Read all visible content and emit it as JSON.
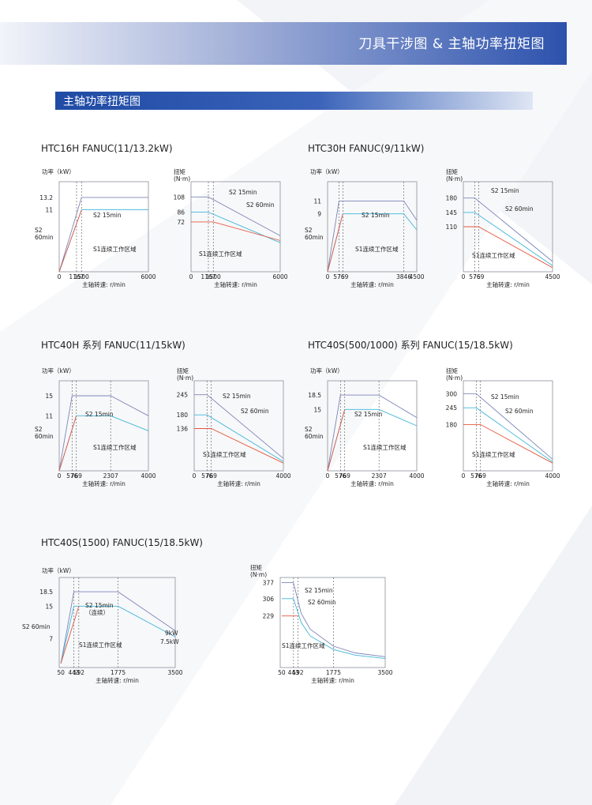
{
  "header": {
    "title": "刀具干涉图 & 主轴功率扭矩图"
  },
  "section": {
    "title": "主轴功率扭矩图"
  },
  "colors": {
    "accent": "#2c52ad",
    "s2_15min": "#7d85b8",
    "s2_60min": "#3fb6d9",
    "s1": "#e5573f",
    "axis": "#8a8f9c"
  },
  "models": [
    {
      "title": "HTC16H FANUC(11/13.2kW)"
    },
    {
      "title": "HTC30H FANUC(9/11kW)"
    },
    {
      "title": "HTC40H 系列 FANUC(11/15kW)"
    },
    {
      "title": "HTC40S(500/1000) 系列 FANUC(15/18.5kW)"
    },
    {
      "title": "HTC40S(1500) FANUC(15/18.5kW)"
    }
  ],
  "chart_data": [
    {
      "model": "HTC16H FANUC(11/13.2kW)",
      "type": "line",
      "ylabel": "功率（kW）",
      "xlabel": "主轴转速: r/min",
      "xlim": [
        0,
        6000
      ],
      "ylim": [
        0,
        16
      ],
      "xticks": [
        "0",
        "1167",
        "1500",
        "6000"
      ],
      "yticks": [
        "13.2",
        "11"
      ],
      "annotations": [
        "S2 15min",
        "S2\n60min",
        "S1连续工作区域"
      ],
      "series": [
        {
          "name": "S2 15min",
          "x": [
            0,
            1500,
            6000
          ],
          "y": [
            0,
            13.2,
            13.2
          ]
        },
        {
          "name": "S2 60min",
          "x": [
            0,
            1500,
            6000
          ],
          "y": [
            0,
            11,
            11
          ]
        },
        {
          "name": "S1",
          "x": [
            0,
            1500
          ],
          "y": [
            0,
            11
          ]
        }
      ]
    },
    {
      "model": "HTC16H FANUC(11/13.2kW)",
      "type": "line",
      "ylabel": "扭矩\n(N·m)",
      "xlabel": "主轴转速: r/min",
      "xlim": [
        0,
        6000
      ],
      "ylim": [
        0,
        130
      ],
      "xticks": [
        "0",
        "1167",
        "1500",
        "6000"
      ],
      "yticks": [
        "108",
        "86",
        "72"
      ],
      "annotations": [
        "S2 15min",
        "S2 60min",
        "S1连续工作区域"
      ],
      "series": [
        {
          "name": "S2 15min",
          "x": [
            0,
            1167,
            6000
          ],
          "y": [
            108,
            108,
            52
          ]
        },
        {
          "name": "S2 60min",
          "x": [
            0,
            1167,
            6000
          ],
          "y": [
            86,
            86,
            42
          ]
        },
        {
          "name": "S1",
          "x": [
            0,
            1500,
            6000
          ],
          "y": [
            72,
            72,
            45
          ]
        }
      ]
    },
    {
      "model": "HTC30H FANUC(9/11kW)",
      "type": "line",
      "ylabel": "功率（kW）",
      "xlabel": "主轴转速: r/min",
      "xlim": [
        0,
        4500
      ],
      "ylim": [
        0,
        14
      ],
      "xticks": [
        "0",
        "576",
        "769",
        "3846",
        "4500"
      ],
      "yticks": [
        "11",
        "9"
      ],
      "annotations": [
        "S2 15min",
        "S2\n60min",
        "S1连续工作区域"
      ],
      "series": [
        {
          "name": "S2 15min",
          "x": [
            0,
            576,
            3846,
            4500
          ],
          "y": [
            0,
            11,
            11,
            8
          ]
        },
        {
          "name": "S2 60min",
          "x": [
            0,
            769,
            3846,
            4500
          ],
          "y": [
            0,
            9,
            9,
            6.5
          ]
        },
        {
          "name": "S1",
          "x": [
            0,
            769
          ],
          "y": [
            0,
            9
          ]
        }
      ]
    },
    {
      "model": "HTC30H FANUC(9/11kW)",
      "type": "line",
      "ylabel": "扭矩\n(N·m)",
      "xlabel": "主轴转速: r/min",
      "xlim": [
        0,
        4500
      ],
      "ylim": [
        0,
        220
      ],
      "xticks": [
        "0",
        "576",
        "769",
        "4500"
      ],
      "yticks": [
        "180",
        "145",
        "110"
      ],
      "annotations": [
        "S2 15min",
        "S2 60min",
        "S1连续工作区域"
      ],
      "series": [
        {
          "name": "S2 15min",
          "x": [
            0,
            576,
            4500
          ],
          "y": [
            180,
            180,
            25
          ]
        },
        {
          "name": "S2 60min",
          "x": [
            0,
            576,
            4500
          ],
          "y": [
            145,
            145,
            15
          ]
        },
        {
          "name": "S1",
          "x": [
            0,
            769,
            4500
          ],
          "y": [
            110,
            110,
            10
          ]
        }
      ]
    },
    {
      "model": "HTC40H 系列 FANUC(11/15kW)",
      "type": "line",
      "ylabel": "功率（kW）",
      "xlabel": "主轴转速: r/min",
      "xlim": [
        0,
        4000
      ],
      "ylim": [
        0,
        18
      ],
      "xticks": [
        "0",
        "576",
        "769",
        "2307",
        "4000"
      ],
      "yticks": [
        "15",
        "11"
      ],
      "annotations": [
        "S2 15min",
        "S2\n60min",
        "S1连续工作区域"
      ],
      "series": [
        {
          "name": "S2 15min",
          "x": [
            0,
            576,
            2307,
            4000
          ],
          "y": [
            0,
            15,
            15,
            11
          ]
        },
        {
          "name": "S2 60min",
          "x": [
            0,
            769,
            2307,
            4000
          ],
          "y": [
            0,
            11,
            11,
            8
          ]
        },
        {
          "name": "S1",
          "x": [
            0,
            769
          ],
          "y": [
            0,
            11
          ]
        }
      ]
    },
    {
      "model": "HTC40H 系列 FANUC(11/15kW)",
      "type": "line",
      "ylabel": "扭矩\n(N·m)",
      "xlabel": "主轴转速: r/min",
      "xlim": [
        0,
        4000
      ],
      "ylim": [
        0,
        290
      ],
      "xticks": [
        "0",
        "576",
        "769",
        "4000"
      ],
      "yticks": [
        "245",
        "180",
        "136"
      ],
      "annotations": [
        "S2 15min",
        "S2 60min",
        "S1连续工作区域"
      ],
      "series": [
        {
          "name": "S2 15min",
          "x": [
            0,
            576,
            4000
          ],
          "y": [
            245,
            245,
            40
          ]
        },
        {
          "name": "S2 60min",
          "x": [
            0,
            576,
            4000
          ],
          "y": [
            180,
            180,
            30
          ]
        },
        {
          "name": "S1",
          "x": [
            0,
            769,
            4000
          ],
          "y": [
            136,
            136,
            25
          ]
        }
      ]
    },
    {
      "model": "HTC40S(500/1000) 系列 FANUC(15/18.5kW)",
      "type": "line",
      "ylabel": "功率（kW）",
      "xlabel": "主轴转速: r/min",
      "xlim": [
        0,
        4000
      ],
      "ylim": [
        0,
        22
      ],
      "xticks": [
        "0",
        "576",
        "769",
        "2307",
        "4000"
      ],
      "yticks": [
        "18.5",
        "15"
      ],
      "annotations": [
        "S2 15min",
        "S2\n60min",
        "S1连续工作区域"
      ],
      "series": [
        {
          "name": "S2 15min",
          "x": [
            0,
            576,
            2307,
            4000
          ],
          "y": [
            0,
            18.5,
            18.5,
            13
          ]
        },
        {
          "name": "S2 60min",
          "x": [
            0,
            769,
            2307,
            4000
          ],
          "y": [
            0,
            15,
            15,
            11
          ]
        },
        {
          "name": "S1",
          "x": [
            0,
            769
          ],
          "y": [
            0,
            15
          ]
        }
      ]
    },
    {
      "model": "HTC40S(500/1000) 系列 FANUC(15/18.5kW)",
      "type": "line",
      "ylabel": "扭矩\n(N·m)",
      "xlabel": "主轴转速: r/min",
      "xlim": [
        0,
        4000
      ],
      "ylim": [
        0,
        350
      ],
      "xticks": [
        "0",
        "576",
        "769",
        "4000"
      ],
      "yticks": [
        "300",
        "245",
        "180"
      ],
      "annotations": [
        "S2 15min",
        "S2 60min",
        "S1连续工作区域"
      ],
      "series": [
        {
          "name": "S2 15min",
          "x": [
            0,
            576,
            4000
          ],
          "y": [
            300,
            300,
            45
          ]
        },
        {
          "name": "S2 60min",
          "x": [
            0,
            576,
            4000
          ],
          "y": [
            245,
            245,
            35
          ]
        },
        {
          "name": "S1",
          "x": [
            0,
            769,
            4000
          ],
          "y": [
            180,
            180,
            30
          ]
        }
      ]
    },
    {
      "model": "HTC40S(1500) FANUC(15/18.5kW)",
      "type": "line",
      "ylabel": "功率（kW）",
      "xlabel": "主轴转速: r/min",
      "xlim": [
        0,
        3500
      ],
      "ylim": [
        0,
        22
      ],
      "xticks": [
        "50",
        "443",
        "592",
        "1775",
        "3500"
      ],
      "yticks": [
        "18.5",
        "15",
        "7"
      ],
      "annotations": [
        "S2 15min\n（连续）",
        "S2 60min",
        "S1连续工作区域",
        "9kW",
        "7.5kW"
      ],
      "series": [
        {
          "name": "S2 15min",
          "x": [
            50,
            443,
            1775,
            3500
          ],
          "y": [
            1,
            18.5,
            18.5,
            9
          ]
        },
        {
          "name": "S2 60min",
          "x": [
            50,
            443,
            1775,
            3500
          ],
          "y": [
            1,
            15,
            15,
            7.5
          ]
        },
        {
          "name": "S1",
          "x": [
            50,
            592
          ],
          "y": [
            1,
            15
          ]
        }
      ]
    },
    {
      "model": "HTC40S(1500) FANUC(15/18.5kW)",
      "type": "line",
      "ylabel": "扭矩\n(N·m)",
      "xlabel": "主轴转速: r/min",
      "xlim": [
        0,
        3500
      ],
      "ylim": [
        0,
        400
      ],
      "xticks": [
        "50",
        "443",
        "592",
        "1775",
        "3500"
      ],
      "yticks": [
        "377",
        "306",
        "229"
      ],
      "annotations": [
        "S2 15min",
        "S2 60min",
        "S1连续工作区域"
      ],
      "series": [
        {
          "name": "S2 15min",
          "x": [
            50,
            443,
            700,
            1000,
            1775,
            2500,
            3500
          ],
          "y": [
            377,
            377,
            240,
            170,
            95,
            65,
            48
          ]
        },
        {
          "name": "S2 60min",
          "x": [
            50,
            443,
            700,
            1000,
            1775,
            2500,
            3500
          ],
          "y": [
            306,
            306,
            200,
            140,
            80,
            55,
            40
          ]
        },
        {
          "name": "S1",
          "x": [
            50,
            592
          ],
          "y": [
            229,
            229
          ]
        }
      ]
    }
  ]
}
